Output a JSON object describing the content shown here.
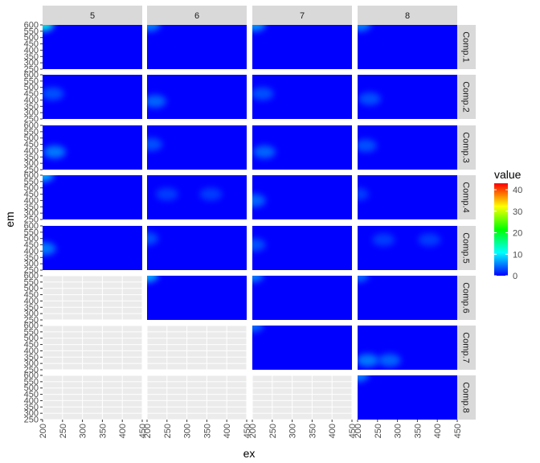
{
  "chart_data": {
    "type": "heatmap",
    "title": "",
    "xlabel": "ex",
    "ylabel": "em",
    "x_ticks": [
      200,
      250,
      300,
      350,
      400,
      450
    ],
    "y_ticks": [
      250,
      300,
      350,
      400,
      450,
      500,
      550,
      600
    ],
    "xlim": [
      200,
      450
    ],
    "ylim": [
      250,
      600
    ],
    "grid": true,
    "col_facets": [
      "5",
      "6",
      "7",
      "8"
    ],
    "row_facets": [
      "Comp.1",
      "Comp.2",
      "Comp.3",
      "Comp.4",
      "Comp.5",
      "Comp.6",
      "Comp.7",
      "Comp.8"
    ],
    "legend": {
      "title": "value",
      "position": "right",
      "ticks": [
        0,
        10,
        20,
        30,
        40
      ],
      "range": [
        0,
        43
      ],
      "colors": [
        "#0000FF",
        "#0080FF",
        "#00FFFF",
        "#00FF80",
        "#00FF00",
        "#80FF00",
        "#FFFF00",
        "#FF8000",
        "#FF0000"
      ]
    },
    "panels": [
      {
        "col": "5",
        "row": "Comp.1",
        "peaks": [
          {
            "ex": 200,
            "em": 600,
            "value": 12
          }
        ]
      },
      {
        "col": "6",
        "row": "Comp.1",
        "peaks": [
          {
            "ex": 205,
            "em": 600,
            "value": 6
          }
        ]
      },
      {
        "col": "7",
        "row": "Comp.1",
        "peaks": [
          {
            "ex": 205,
            "em": 600,
            "value": 7
          }
        ]
      },
      {
        "col": "8",
        "row": "Comp.1",
        "peaks": [
          {
            "ex": 205,
            "em": 600,
            "value": 6
          }
        ]
      },
      {
        "col": "5",
        "row": "Comp.2",
        "peaks": [
          {
            "ex": 225,
            "em": 450,
            "value": 4
          }
        ]
      },
      {
        "col": "6",
        "row": "Comp.2",
        "peaks": [
          {
            "ex": 220,
            "em": 390,
            "value": 5
          }
        ]
      },
      {
        "col": "7",
        "row": "Comp.2",
        "peaks": [
          {
            "ex": 225,
            "em": 450,
            "value": 4
          }
        ]
      },
      {
        "col": "8",
        "row": "Comp.2",
        "peaks": [
          {
            "ex": 230,
            "em": 410,
            "value": 4
          }
        ]
      },
      {
        "col": "5",
        "row": "Comp.3",
        "peaks": [
          {
            "ex": 230,
            "em": 390,
            "value": 6
          }
        ]
      },
      {
        "col": "6",
        "row": "Comp.3",
        "peaks": [
          {
            "ex": 210,
            "em": 450,
            "value": 4
          }
        ]
      },
      {
        "col": "7",
        "row": "Comp.3",
        "peaks": [
          {
            "ex": 230,
            "em": 390,
            "value": 5
          }
        ]
      },
      {
        "col": "8",
        "row": "Comp.3",
        "peaks": [
          {
            "ex": 220,
            "em": 440,
            "value": 4
          }
        ]
      },
      {
        "col": "5",
        "row": "Comp.4",
        "peaks": [
          {
            "ex": 200,
            "em": 600,
            "value": 8
          }
        ]
      },
      {
        "col": "6",
        "row": "Comp.4",
        "peaks": [
          {
            "ex": 250,
            "em": 450,
            "value": 3
          },
          {
            "ex": 360,
            "em": 450,
            "value": 3
          }
        ]
      },
      {
        "col": "7",
        "row": "Comp.4",
        "peaks": [
          {
            "ex": 205,
            "em": 400,
            "value": 5
          }
        ]
      },
      {
        "col": "8",
        "row": "Comp.4",
        "peaks": [
          {
            "ex": 200,
            "em": 450,
            "value": 3
          }
        ]
      },
      {
        "col": "5",
        "row": "Comp.5",
        "peaks": [
          {
            "ex": 205,
            "em": 420,
            "value": 6
          }
        ]
      },
      {
        "col": "6",
        "row": "Comp.5",
        "peaks": [
          {
            "ex": 200,
            "em": 500,
            "value": 4
          }
        ]
      },
      {
        "col": "7",
        "row": "Comp.5",
        "peaks": [
          {
            "ex": 205,
            "em": 450,
            "value": 4
          }
        ]
      },
      {
        "col": "8",
        "row": "Comp.5",
        "peaks": [
          {
            "ex": 265,
            "em": 490,
            "value": 3
          },
          {
            "ex": 380,
            "em": 490,
            "value": 3
          }
        ]
      },
      {
        "col": "6",
        "row": "Comp.6",
        "peaks": [
          {
            "ex": 200,
            "em": 600,
            "value": 8
          }
        ]
      },
      {
        "col": "7",
        "row": "Comp.6",
        "peaks": [
          {
            "ex": 200,
            "em": 600,
            "value": 6
          }
        ]
      },
      {
        "col": "8",
        "row": "Comp.6",
        "peaks": [
          {
            "ex": 200,
            "em": 600,
            "value": 5
          }
        ]
      },
      {
        "col": "7",
        "row": "Comp.7",
        "peaks": [
          {
            "ex": 200,
            "em": 600,
            "value": 5
          }
        ]
      },
      {
        "col": "8",
        "row": "Comp.7",
        "peaks": [
          {
            "ex": 225,
            "em": 325,
            "value": 6
          },
          {
            "ex": 280,
            "em": 325,
            "value": 5
          }
        ]
      },
      {
        "col": "8",
        "row": "Comp.8",
        "peaks": [
          {
            "ex": 200,
            "em": 600,
            "value": 6
          }
        ]
      }
    ]
  }
}
